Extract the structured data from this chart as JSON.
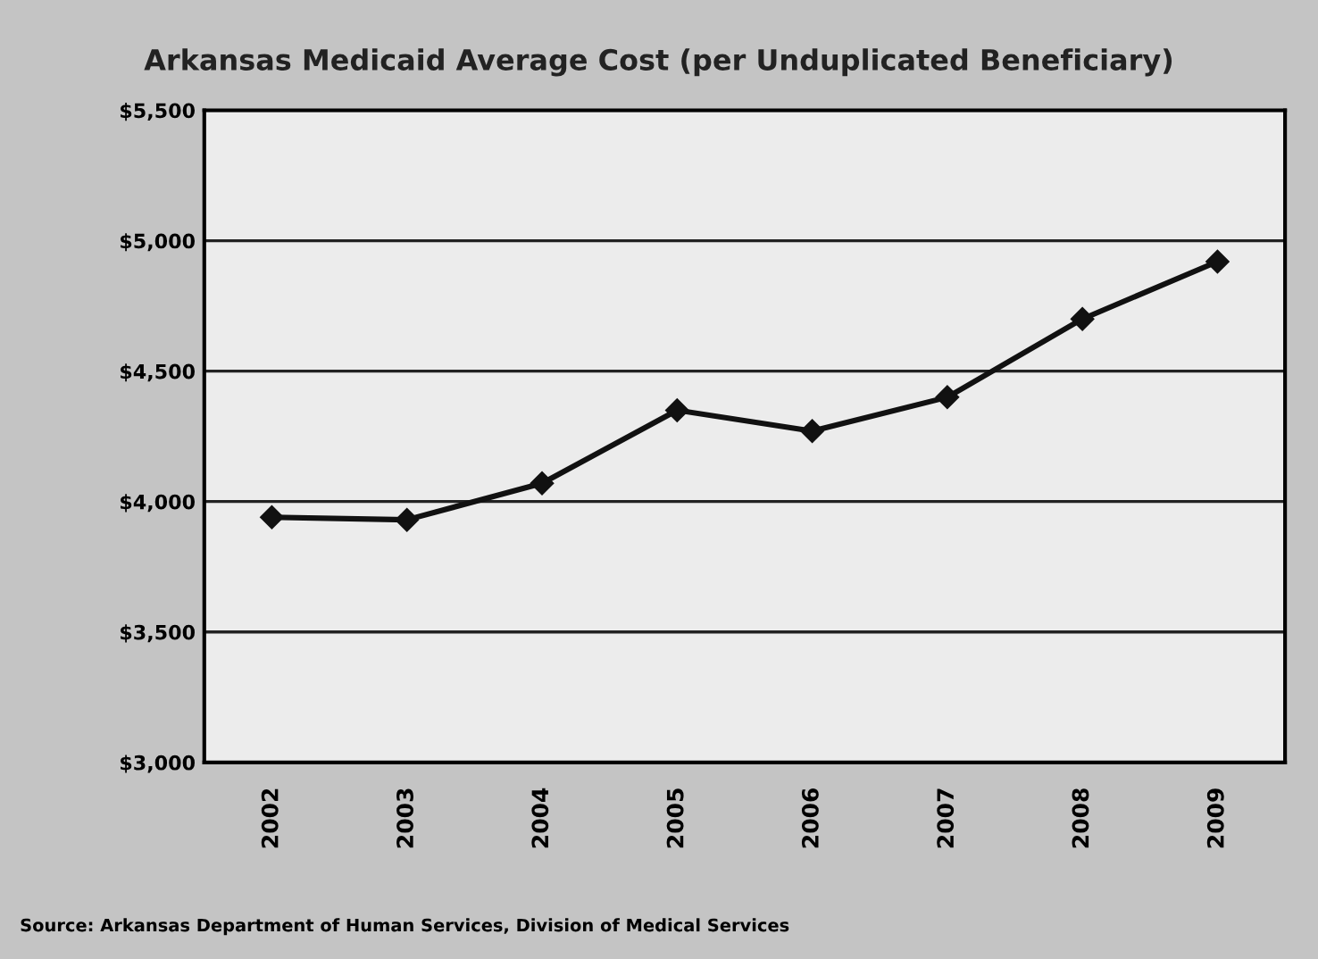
{
  "chart_data": {
    "type": "line",
    "title": "Arkansas Medicaid Average Cost (per Unduplicated Beneficiary)",
    "categories": [
      "2002",
      "2003",
      "2004",
      "2005",
      "2006",
      "2007",
      "2008",
      "2009"
    ],
    "series": [
      {
        "color": "#111111",
        "values": [
          3940,
          3930,
          4070,
          4350,
          4270,
          4400,
          4700,
          4920
        ]
      }
    ],
    "ylim": [
      3000,
      5500
    ],
    "yticks": [
      {
        "value": 3000,
        "label": "$3,000"
      },
      {
        "value": 3500,
        "label": "$3,500"
      },
      {
        "value": 4000,
        "label": "$4,000"
      },
      {
        "value": 4500,
        "label": "$4,500"
      },
      {
        "value": 5000,
        "label": "$5,000"
      },
      {
        "value": 5500,
        "label": "$5,500"
      }
    ],
    "grid": "y",
    "marker": "diamond",
    "line_style": "solid",
    "legend": false,
    "annotations": [
      "Source: Arkansas Department of Human Services, Division of Medical Services"
    ]
  }
}
